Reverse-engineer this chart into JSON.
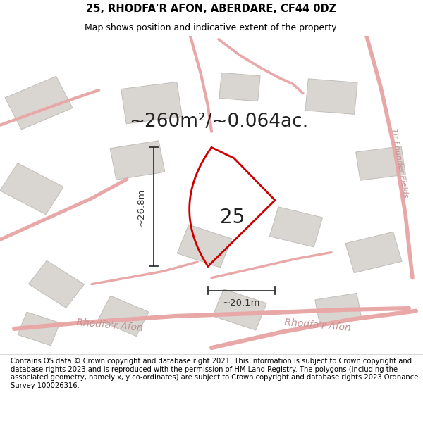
{
  "title": "25, RHODFA'R AFON, ABERDARE, CF44 0DZ",
  "subtitle": "Map shows position and indicative extent of the property.",
  "area_label": "~260m²/~0.064ac.",
  "number_label": "25",
  "dim_width": "~20.1m",
  "dim_height": "~26.8m",
  "footer": "Contains OS data © Crown copyright and database right 2021. This information is subject to Crown copyright and database rights 2023 and is reproduced with the permission of HM Land Registry. The polygons (including the associated geometry, namely x, y co-ordinates) are subject to Crown copyright and database rights 2023 Ordnance Survey 100026316.",
  "bg_color": "#ffffff",
  "map_bg": "#f7f5f3",
  "road_color": "#e8a8a8",
  "road_lw": 2.0,
  "property_color": "#cc0000",
  "property_lw": 2.0,
  "building_fill": "#d9d6d2",
  "building_edge": "#c0bdb8",
  "dim_color": "#333333",
  "title_fontsize": 10.5,
  "subtitle_fontsize": 9,
  "area_fontsize": 19,
  "number_fontsize": 20,
  "dim_fontsize": 9.5,
  "footer_fontsize": 7.2,
  "road_label_color": "#c09090",
  "road_label_fontsize": 10,
  "side_label_color": "#c09090",
  "side_label_fontsize": 8
}
